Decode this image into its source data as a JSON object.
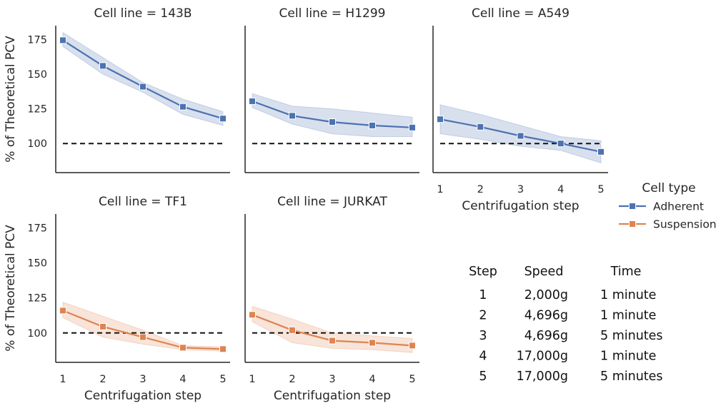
{
  "chart_data": {
    "type": "line",
    "xlabel": "Centrifugation step",
    "ylabel": "% of Theoretical PCV",
    "x": [
      1,
      2,
      3,
      4,
      5
    ],
    "ylim": [
      79,
      185
    ],
    "yticks": [
      100,
      125,
      150,
      175
    ],
    "reference_line": 100,
    "grid": false,
    "legend": {
      "title": "Cell type",
      "placement": "right",
      "entries": [
        {
          "label": "Adherent",
          "color": "#4c72b0"
        },
        {
          "label": "Suspension",
          "color": "#dd8452"
        }
      ]
    },
    "panels": [
      {
        "title": "Cell line = 143B",
        "cell_type": "Adherent",
        "values": [
          174.5,
          156,
          141,
          126.5,
          118
        ],
        "ci_low": [
          170,
          150,
          137,
          121,
          113
        ],
        "ci_high": [
          180,
          162,
          144,
          132,
          123
        ]
      },
      {
        "title": "Cell line = H1299",
        "cell_type": "Adherent",
        "values": [
          130.5,
          120,
          115.5,
          113,
          111.5
        ],
        "ci_low": [
          126,
          114,
          107,
          105,
          105
        ],
        "ci_high": [
          136,
          127,
          125,
          122,
          119
        ]
      },
      {
        "title": "Cell line = A549",
        "cell_type": "Adherent",
        "values": [
          117.5,
          112,
          105.5,
          100,
          94
        ],
        "ci_low": [
          107,
          103,
          98,
          95,
          86
        ],
        "ci_high": [
          128,
          121,
          113,
          105,
          102
        ]
      },
      {
        "title": "Cell line = TF1",
        "cell_type": "Suspension",
        "values": [
          116,
          104.5,
          97,
          89.5,
          88.5
        ],
        "ci_low": [
          111,
          97,
          92,
          88,
          87
        ],
        "ci_high": [
          122,
          112,
          102,
          91,
          90
        ]
      },
      {
        "title": "Cell line = JURKAT",
        "cell_type": "Suspension",
        "values": [
          113,
          102,
          94.5,
          93,
          91
        ],
        "ci_low": [
          108,
          93,
          89,
          88,
          86
        ],
        "ci_high": [
          119,
          110,
          100,
          98,
          96
        ]
      }
    ]
  },
  "table": {
    "headers": [
      "Step",
      "Speed",
      "Time"
    ],
    "rows": [
      [
        "1",
        "2,000g",
        "1 minute"
      ],
      [
        "2",
        "4,696g",
        "1 minute"
      ],
      [
        "3",
        "4,696g",
        "5 minutes"
      ],
      [
        "4",
        "17,000g",
        "1 minute"
      ],
      [
        "5",
        "17,000g",
        "5 minutes"
      ]
    ]
  }
}
